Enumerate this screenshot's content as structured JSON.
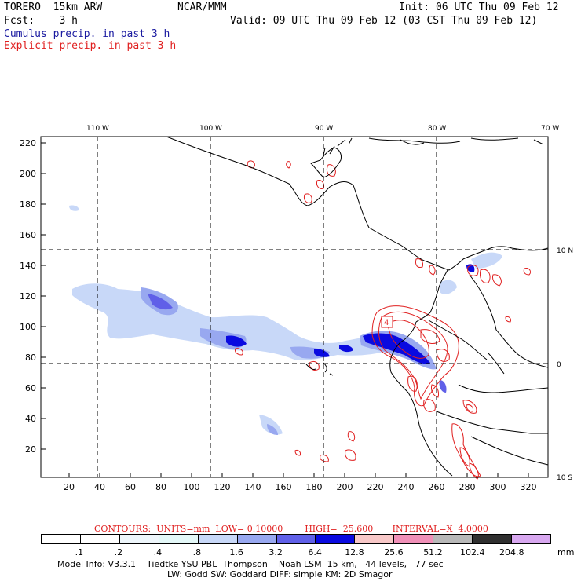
{
  "header": {
    "left1": "TORERO  15km ARW",
    "center1": "NCAR/MMM",
    "right1": "Init: 06 UTC Thu 09 Feb 12",
    "left2": "Fcst:    3 h",
    "right2": "Valid: 09 UTC Thu 09 Feb 12 (03 CST Thu 09 Feb 12)",
    "line3": "Cumulus precip. in past 3 h",
    "line4": "Explicit precip. in past 3 h"
  },
  "top_lon_labels": [
    "110 W",
    "100 W",
    "90 W",
    "80 W",
    "70 W"
  ],
  "left_y_labels": [
    "220",
    "200",
    "180",
    "160",
    "140",
    "120",
    "100",
    "80",
    "60",
    "40",
    "20"
  ],
  "bottom_x_labels": [
    "20",
    "40",
    "60",
    "80",
    "100",
    "120",
    "140",
    "160",
    "180",
    "200",
    "220",
    "240",
    "260",
    "280",
    "300",
    "320"
  ],
  "right_lat_labels": [
    "10 N",
    "0",
    "10 S"
  ],
  "box_label": "4",
  "contour_info": "CONTOURS:  UNITS=mm  LOW= 0.10000        HIGH=  25.600       INTERVAL=X  4.0000",
  "legend": {
    "values": [
      ".1",
      ".2",
      ".4",
      ".8",
      "1.6",
      "3.2",
      "6.4",
      "12.8",
      "25.6",
      "51.2",
      "102.4",
      "204.8"
    ],
    "unit": "mm",
    "colors": [
      "#ffffff",
      "#ffffff",
      "#eef6fb",
      "#e4f8f8",
      "#c8d8f8",
      "#98a8f0",
      "#6060e8",
      "#0a0ae0",
      "#f8c8c8",
      "#f090b8",
      "#b8b8b8",
      "#303030",
      "#d8a8f0"
    ]
  },
  "footer": {
    "line1": "Model Info: V3.3.1    Tiedtke YSU PBL  Thompson    Noah LSM  15 km,   44 levels,   77 sec",
    "line2": "LW: Godd SW: Goddard DIFF: simple KM: 2D Smagor"
  }
}
